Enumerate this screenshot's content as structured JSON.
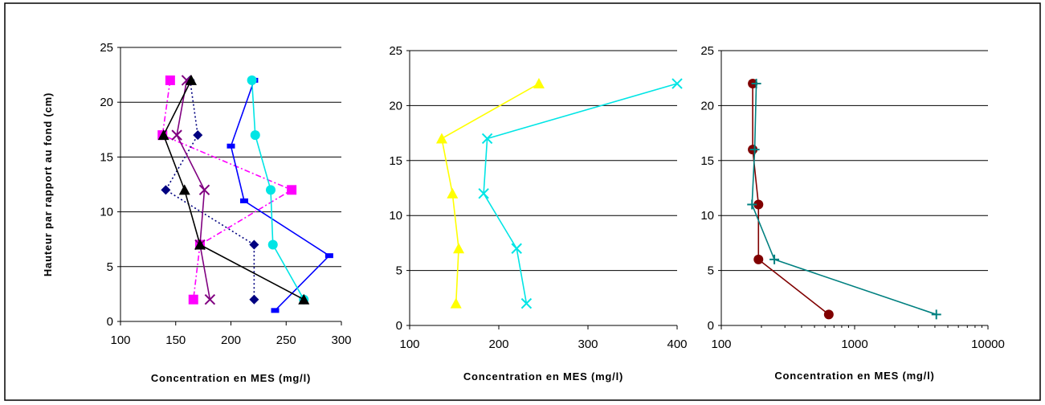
{
  "chart_data": [
    {
      "type": "line",
      "xscale": "linear",
      "xlim": [
        100,
        300
      ],
      "ylim": [
        0,
        25
      ],
      "xticks": [
        100,
        150,
        200,
        250,
        300
      ],
      "yticks": [
        0,
        5,
        10,
        15,
        20,
        25
      ],
      "grid": "horizontal",
      "xlabel": "Concentration en MES (mg/l)",
      "ylabel": "Hauteur par rapport au fond (cm)",
      "series": [
        {
          "color": "#ff00ff",
          "marker": "square",
          "dash": "dashdot",
          "points": [
            [
              145,
              22
            ],
            [
              138,
              17
            ],
            [
              255,
              12
            ],
            [
              172,
              7
            ],
            [
              166,
              2
            ]
          ]
        },
        {
          "color": "#000080",
          "marker": "diamond",
          "dash": "dotted",
          "points": [
            [
              163,
              22
            ],
            [
              170,
              17
            ],
            [
              141,
              12
            ],
            [
              221,
              7
            ],
            [
              221,
              2
            ]
          ]
        },
        {
          "color": "#0000ff",
          "marker": "dash",
          "dash": "solid",
          "points": [
            [
              221,
              22
            ],
            [
              200,
              16
            ],
            [
              212,
              11
            ],
            [
              289,
              6
            ],
            [
              240,
              1
            ]
          ]
        },
        {
          "color": "#00e5e5",
          "marker": "circle",
          "dash": "solid",
          "points": [
            [
              219,
              22
            ],
            [
              222,
              17
            ],
            [
              236,
              12
            ],
            [
              238,
              7
            ],
            [
              266,
              2
            ]
          ]
        },
        {
          "color": "#800080",
          "marker": "x",
          "dash": "solid",
          "points": [
            [
              160,
              22
            ],
            [
              151,
              17
            ],
            [
              176,
              12
            ],
            [
              172,
              7
            ],
            [
              181,
              2
            ]
          ]
        },
        {
          "color": "#000000",
          "marker": "triangle",
          "dash": "solid",
          "points": [
            [
              164,
              22
            ],
            [
              139,
              17
            ],
            [
              158,
              12
            ],
            [
              172,
              7
            ],
            [
              266,
              2
            ]
          ]
        }
      ]
    },
    {
      "type": "line",
      "xscale": "linear",
      "xlim": [
        100,
        400
      ],
      "ylim": [
        0,
        25
      ],
      "xticks": [
        100,
        200,
        300,
        400
      ],
      "yticks": [
        0,
        5,
        10,
        15,
        20,
        25
      ],
      "grid": "horizontal",
      "xlabel": "Concentration en MES (mg/l)",
      "ylabel": "",
      "series": [
        {
          "color": "#ffff00",
          "marker": "triangle",
          "dash": "solid",
          "points": [
            [
              245,
              22
            ],
            [
              136,
              17
            ],
            [
              148,
              12
            ],
            [
              155,
              7
            ],
            [
              152,
              2
            ]
          ]
        },
        {
          "color": "#00e5e5",
          "marker": "x",
          "dash": "solid",
          "points": [
            [
              400,
              22
            ],
            [
              187,
              17
            ],
            [
              183,
              12
            ],
            [
              220,
              7
            ],
            [
              231,
              2
            ]
          ]
        }
      ]
    },
    {
      "type": "line",
      "xscale": "log",
      "xlim": [
        100,
        10000
      ],
      "ylim": [
        0,
        25
      ],
      "xticks": [
        100,
        1000,
        10000
      ],
      "yticks": [
        0,
        5,
        10,
        15,
        20,
        25
      ],
      "grid": "horizontal",
      "xlabel": "Concentration en MES (mg/l)",
      "ylabel": "",
      "series": [
        {
          "color": "#800000",
          "marker": "circle",
          "dash": "solid",
          "points": [
            [
              172,
              22
            ],
            [
              172,
              16
            ],
            [
              190,
              11
            ],
            [
              190,
              6
            ],
            [
              640,
              1
            ]
          ]
        },
        {
          "color": "#008080",
          "marker": "plus",
          "dash": "solid",
          "points": [
            [
              183,
              22
            ],
            [
              178,
              16
            ],
            [
              170,
              11
            ],
            [
              250,
              6
            ],
            [
              4100,
              1
            ]
          ]
        }
      ]
    }
  ]
}
